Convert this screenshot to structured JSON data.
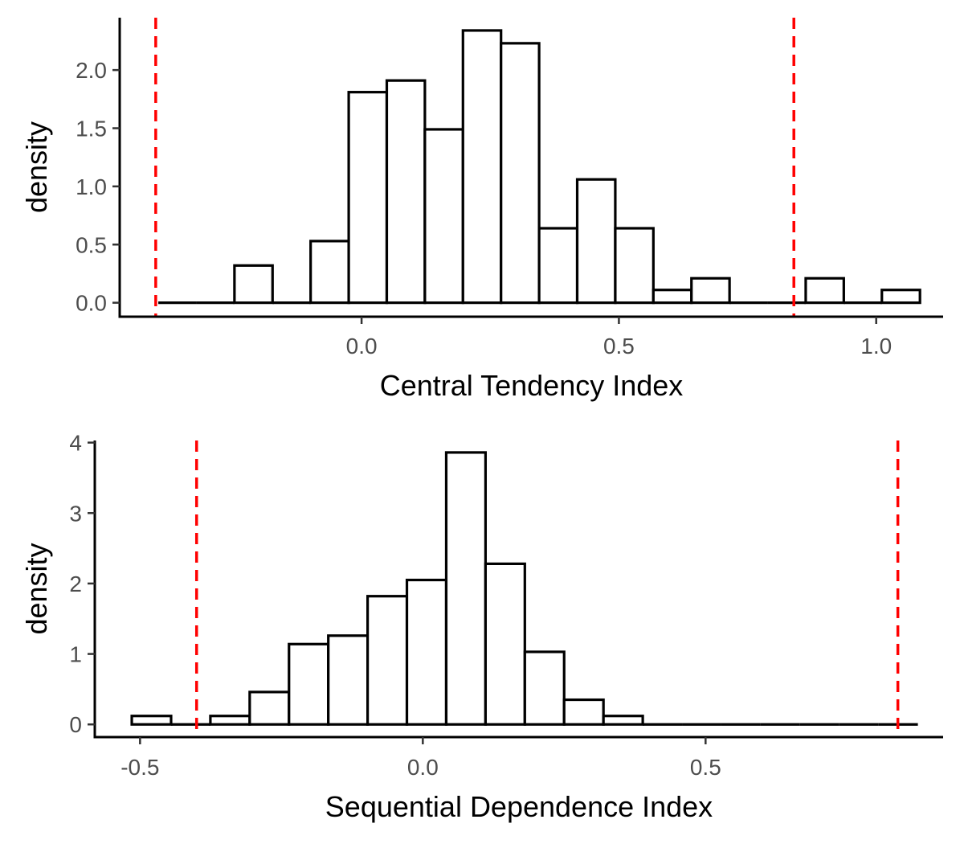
{
  "chart_data": [
    {
      "type": "histogram",
      "title": "",
      "xlabel": "Central Tendency Index",
      "ylabel": "density",
      "xlim": [
        -0.47,
        1.13
      ],
      "ylim": [
        -0.12,
        2.45
      ],
      "bin_width": 0.074,
      "bins": [
        {
          "x0": -0.395,
          "x1": -0.321,
          "density": 0.0
        },
        {
          "x0": -0.321,
          "x1": -0.247,
          "density": 0.0
        },
        {
          "x0": -0.247,
          "x1": -0.173,
          "density": 0.32
        },
        {
          "x0": -0.173,
          "x1": -0.099,
          "density": 0.0
        },
        {
          "x0": -0.099,
          "x1": -0.025,
          "density": 0.53
        },
        {
          "x0": -0.025,
          "x1": 0.049,
          "density": 1.81
        },
        {
          "x0": 0.049,
          "x1": 0.123,
          "density": 1.91
        },
        {
          "x0": 0.123,
          "x1": 0.197,
          "density": 1.49
        },
        {
          "x0": 0.197,
          "x1": 0.271,
          "density": 2.34
        },
        {
          "x0": 0.271,
          "x1": 0.345,
          "density": 2.23
        },
        {
          "x0": 0.345,
          "x1": 0.419,
          "density": 0.64
        },
        {
          "x0": 0.419,
          "x1": 0.493,
          "density": 1.06
        },
        {
          "x0": 0.493,
          "x1": 0.567,
          "density": 0.64
        },
        {
          "x0": 0.567,
          "x1": 0.641,
          "density": 0.11
        },
        {
          "x0": 0.641,
          "x1": 0.715,
          "density": 0.21
        },
        {
          "x0": 0.715,
          "x1": 0.789,
          "density": 0.0
        },
        {
          "x0": 0.789,
          "x1": 0.863,
          "density": 0.0
        },
        {
          "x0": 0.863,
          "x1": 0.937,
          "density": 0.21
        },
        {
          "x0": 0.937,
          "x1": 1.011,
          "density": 0.0
        },
        {
          "x0": 1.011,
          "x1": 1.085,
          "density": 0.11
        }
      ],
      "reference_lines": [
        -0.4,
        0.84
      ],
      "reference_line_color": "#ff0000",
      "x_ticks": [
        {
          "value": 0.0,
          "label": "0.0"
        },
        {
          "value": 0.5,
          "label": "0.5"
        },
        {
          "value": 1.0,
          "label": "1.0"
        }
      ],
      "y_ticks": [
        {
          "value": 0.0,
          "label": "0.0"
        },
        {
          "value": 0.5,
          "label": "0.5"
        },
        {
          "value": 1.0,
          "label": "1.0"
        },
        {
          "value": 1.5,
          "label": "1.5"
        },
        {
          "value": 2.0,
          "label": "2.0"
        }
      ],
      "grid": false
    },
    {
      "type": "histogram",
      "title": "",
      "xlabel": "Sequential Dependence Index",
      "ylabel": "density",
      "xlim": [
        -0.58,
        0.92
      ],
      "ylim": [
        -0.18,
        4.03
      ],
      "bin_width": 0.0695,
      "bins": [
        {
          "x0": -0.5146,
          "x1": -0.4451,
          "density": 0.12
        },
        {
          "x0": -0.4451,
          "x1": -0.3756,
          "density": 0.0
        },
        {
          "x0": -0.3756,
          "x1": -0.3061,
          "density": 0.12
        },
        {
          "x0": -0.3061,
          "x1": -0.2366,
          "density": 0.46
        },
        {
          "x0": -0.2366,
          "x1": -0.1671,
          "density": 1.14
        },
        {
          "x0": -0.1671,
          "x1": -0.0976,
          "density": 1.26
        },
        {
          "x0": -0.0976,
          "x1": -0.0281,
          "density": 1.82
        },
        {
          "x0": -0.0281,
          "x1": 0.0414,
          "density": 2.05
        },
        {
          "x0": 0.0414,
          "x1": 0.1109,
          "density": 3.86
        },
        {
          "x0": 0.1109,
          "x1": 0.1804,
          "density": 2.28
        },
        {
          "x0": 0.1804,
          "x1": 0.2499,
          "density": 1.03
        },
        {
          "x0": 0.2499,
          "x1": 0.3194,
          "density": 0.35
        },
        {
          "x0": 0.3194,
          "x1": 0.3889,
          "density": 0.12
        },
        {
          "x0": 0.3889,
          "x1": 0.4584,
          "density": 0.0
        },
        {
          "x0": 0.4584,
          "x1": 0.5279,
          "density": 0.0
        },
        {
          "x0": 0.5279,
          "x1": 0.5974,
          "density": 0.0
        },
        {
          "x0": 0.5974,
          "x1": 0.6669,
          "density": 0.0
        },
        {
          "x0": 0.6669,
          "x1": 0.7364,
          "density": 0.0
        },
        {
          "x0": 0.7364,
          "x1": 0.8059,
          "density": 0.0
        },
        {
          "x0": 0.8059,
          "x1": 0.8754,
          "density": 0.0
        }
      ],
      "reference_lines": [
        -0.4,
        0.84
      ],
      "reference_line_color": "#ff0000",
      "x_ticks": [
        {
          "value": -0.5,
          "label": "-0.5"
        },
        {
          "value": 0.0,
          "label": "0.0"
        },
        {
          "value": 0.5,
          "label": "0.5"
        }
      ],
      "y_ticks": [
        {
          "value": 0,
          "label": "0"
        },
        {
          "value": 1,
          "label": "1"
        },
        {
          "value": 2,
          "label": "2"
        },
        {
          "value": 3,
          "label": "3"
        },
        {
          "value": 4,
          "label": "4"
        }
      ],
      "grid": false
    }
  ]
}
